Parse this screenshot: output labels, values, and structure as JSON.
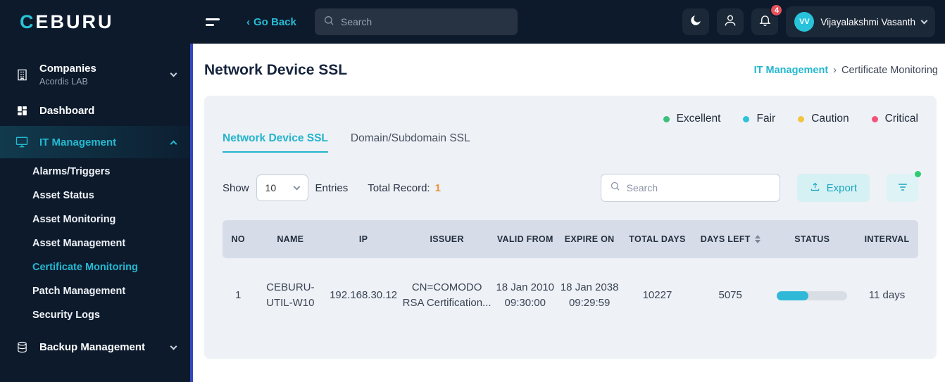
{
  "topbar": {
    "logo_first": "C",
    "logo_rest": "EBURU",
    "back_icon": "‹",
    "go_back": "Go Back",
    "search_placeholder": "Search",
    "bell_badge": "4",
    "avatar_initials": "VV",
    "username": "Vijayalakshmi Vasanth"
  },
  "sidebar": {
    "companies": {
      "label": "Companies",
      "sublabel": "Acordis LAB"
    },
    "dashboard": "Dashboard",
    "it_management": {
      "label": "IT Management",
      "children": [
        "Alarms/Triggers",
        "Asset Status",
        "Asset Monitoring",
        "Asset Management",
        "Certificate Monitoring",
        "Patch Management",
        "Security Logs"
      ],
      "active_child": "Certificate Monitoring"
    },
    "backup_management": "Backup Management"
  },
  "header": {
    "title": "Network Device SSL",
    "breadcrumb": [
      "IT Management",
      "Certificate Monitoring"
    ],
    "breadcrumb_separator": "›"
  },
  "card": {
    "legend": [
      {
        "label": "Excellent",
        "color": "#3dbf7c"
      },
      {
        "label": "Fair",
        "color": "#2cc3dc"
      },
      {
        "label": "Caution",
        "color": "#f2c53d"
      },
      {
        "label": "Critical",
        "color": "#f2527a"
      }
    ],
    "tabs": [
      {
        "label": "Network Device SSL",
        "active": true
      },
      {
        "label": "Domain/Subdomain SSL",
        "active": false
      }
    ],
    "show_label": "Show",
    "page_size": "10",
    "entries_label": "Entries",
    "total_record_label": "Total Record:",
    "total_record_value": "1",
    "search_placeholder": "Search",
    "export_label": "Export"
  },
  "table": {
    "headers": [
      "NO",
      "NAME",
      "IP",
      "ISSUER",
      "VALID FROM",
      "EXPIRE ON",
      "TOTAL DAYS",
      "DAYS LEFT",
      "STATUS",
      "INTERVAL"
    ],
    "rows": [
      {
        "no": "1",
        "name": "CEBURU-UTIL-W10",
        "ip": "192.168.30.12",
        "issuer": "CN=COMODO RSA Certification...",
        "valid_from": "18 Jan 2010 09:30:00",
        "expire_on": "18 Jan 2038 09:29:59",
        "total_days": "10227",
        "days_left": "5075",
        "status_percent": 45,
        "interval": "11 days"
      }
    ]
  },
  "colors": {
    "accent_teal": "#25b9d1",
    "dark_navy": "#0c1a2c",
    "badge_red": "#e7515a",
    "progress_fill": "#2fb9d6",
    "total_record_value_color": "#e8953e"
  }
}
